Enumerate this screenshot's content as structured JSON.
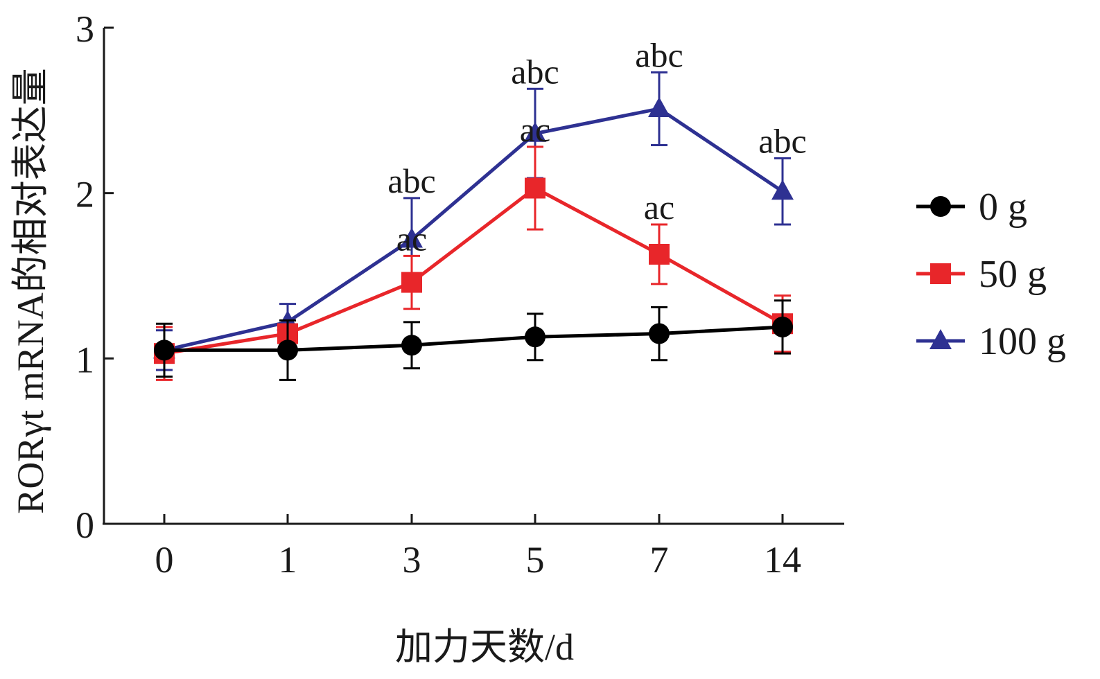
{
  "chart_data": {
    "type": "line",
    "xlabel": "加力天数/d",
    "ylabel": "RORγt mRNA的相对表达量",
    "categories": [
      "0",
      "1",
      "3",
      "5",
      "7",
      "14"
    ],
    "ylim": [
      0,
      3
    ],
    "yticks": [
      "0",
      "1",
      "2",
      "3"
    ],
    "grid": false,
    "legend_position": "right",
    "series": [
      {
        "name": "0 g",
        "color": "#000000",
        "marker": "circle",
        "values": [
          1.05,
          1.05,
          1.08,
          1.13,
          1.15,
          1.19
        ],
        "errors": [
          0.16,
          0.18,
          0.14,
          0.14,
          0.16,
          0.16
        ],
        "annotations": [
          "",
          "",
          "",
          "",
          "",
          ""
        ]
      },
      {
        "name": "50 g",
        "color": "#e8262a",
        "marker": "square",
        "values": [
          1.03,
          1.15,
          1.46,
          2.03,
          1.63,
          1.21
        ],
        "errors": [
          0.16,
          0.08,
          0.16,
          0.25,
          0.18,
          0.17
        ],
        "annotations": [
          "",
          "",
          "ac",
          "ac",
          "ac",
          ""
        ]
      },
      {
        "name": "100 g",
        "color": "#2e3192",
        "marker": "triangle",
        "values": [
          1.05,
          1.22,
          1.72,
          2.36,
          2.51,
          2.01
        ],
        "errors": [
          0.12,
          0.11,
          0.25,
          0.27,
          0.22,
          0.2
        ],
        "annotations": [
          "",
          "",
          "abc",
          "abc",
          "abc",
          "abc"
        ]
      }
    ]
  }
}
